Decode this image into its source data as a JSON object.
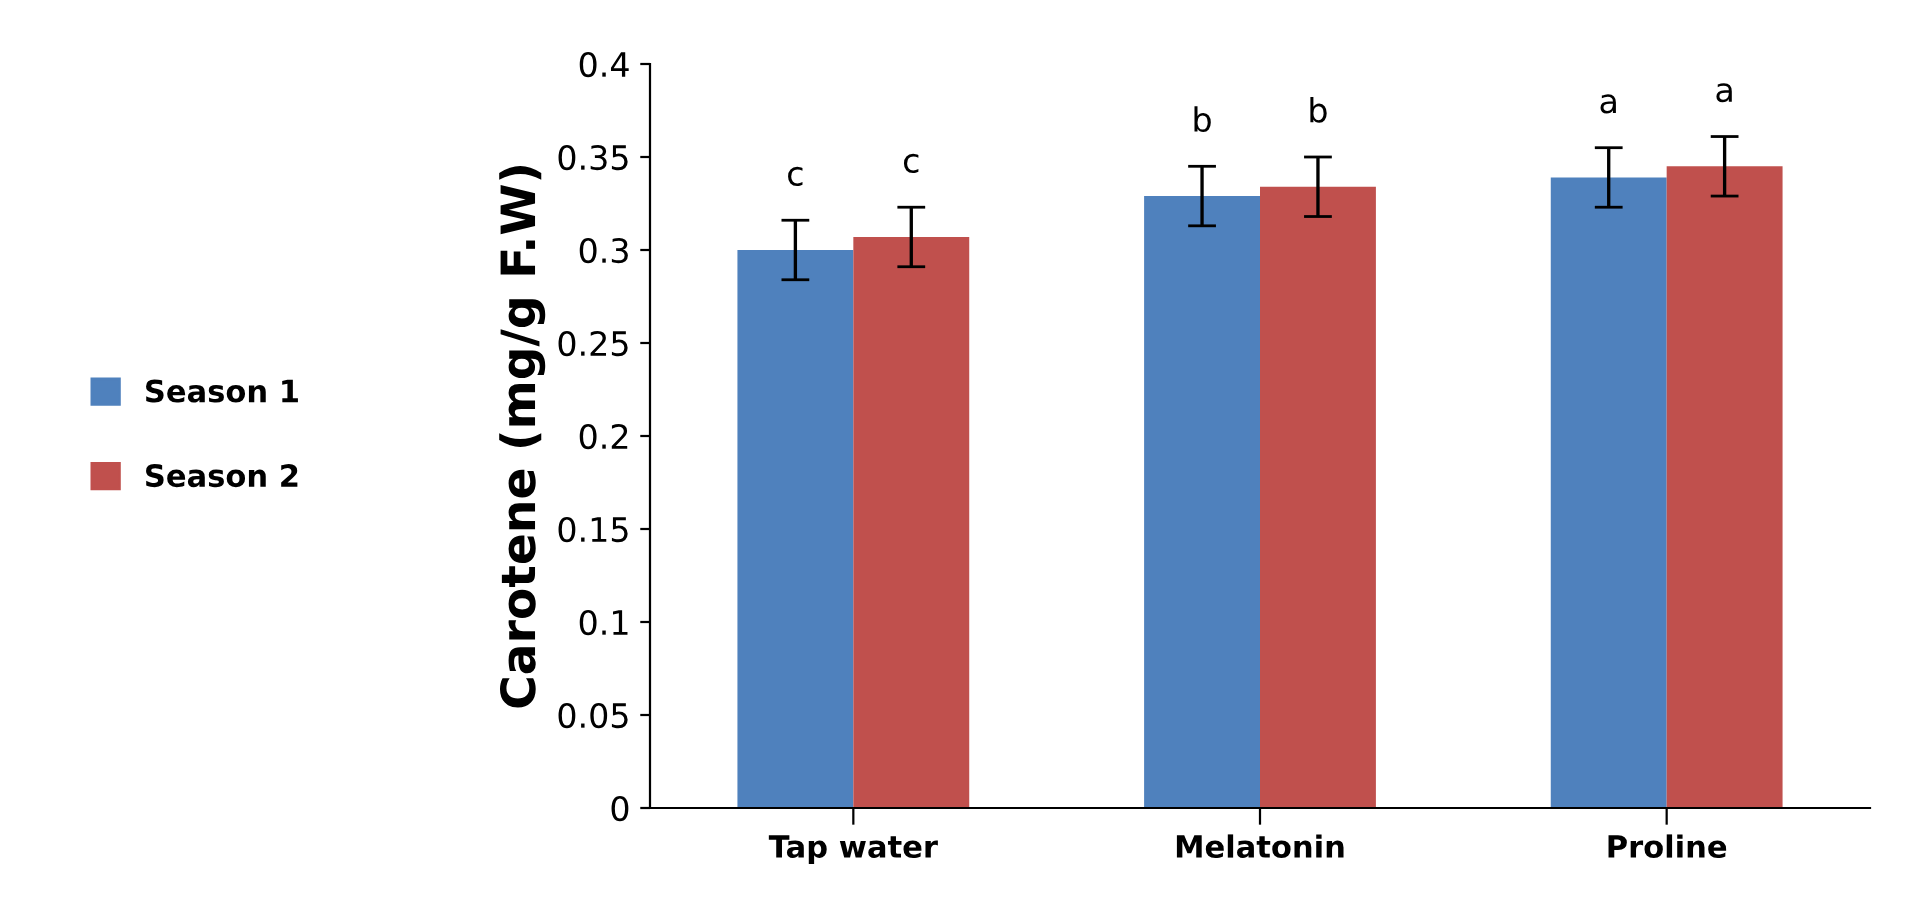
{
  "chart_data": {
    "type": "bar",
    "ylabel": "Carotene (mg/g F.W)",
    "categories": [
      "Tap water",
      "Melatonin",
      "Proline"
    ],
    "series": [
      {
        "name": "Season 1",
        "color": "#4f81bd",
        "values": [
          0.3,
          0.329,
          0.339
        ],
        "errors": [
          0.016,
          0.016,
          0.016
        ]
      },
      {
        "name": "Season 2",
        "color": "#c0504d",
        "values": [
          0.307,
          0.334,
          0.345
        ],
        "errors": [
          0.016,
          0.016,
          0.016
        ]
      }
    ],
    "ylim": [
      0,
      0.4
    ],
    "yticks": [
      0,
      0.05,
      0.1,
      0.15,
      0.2,
      0.25,
      0.3,
      0.35,
      0.4
    ],
    "annotations": [
      "c",
      "c",
      "b",
      "b",
      "a",
      "a"
    ],
    "grid": false,
    "legend": "left"
  }
}
